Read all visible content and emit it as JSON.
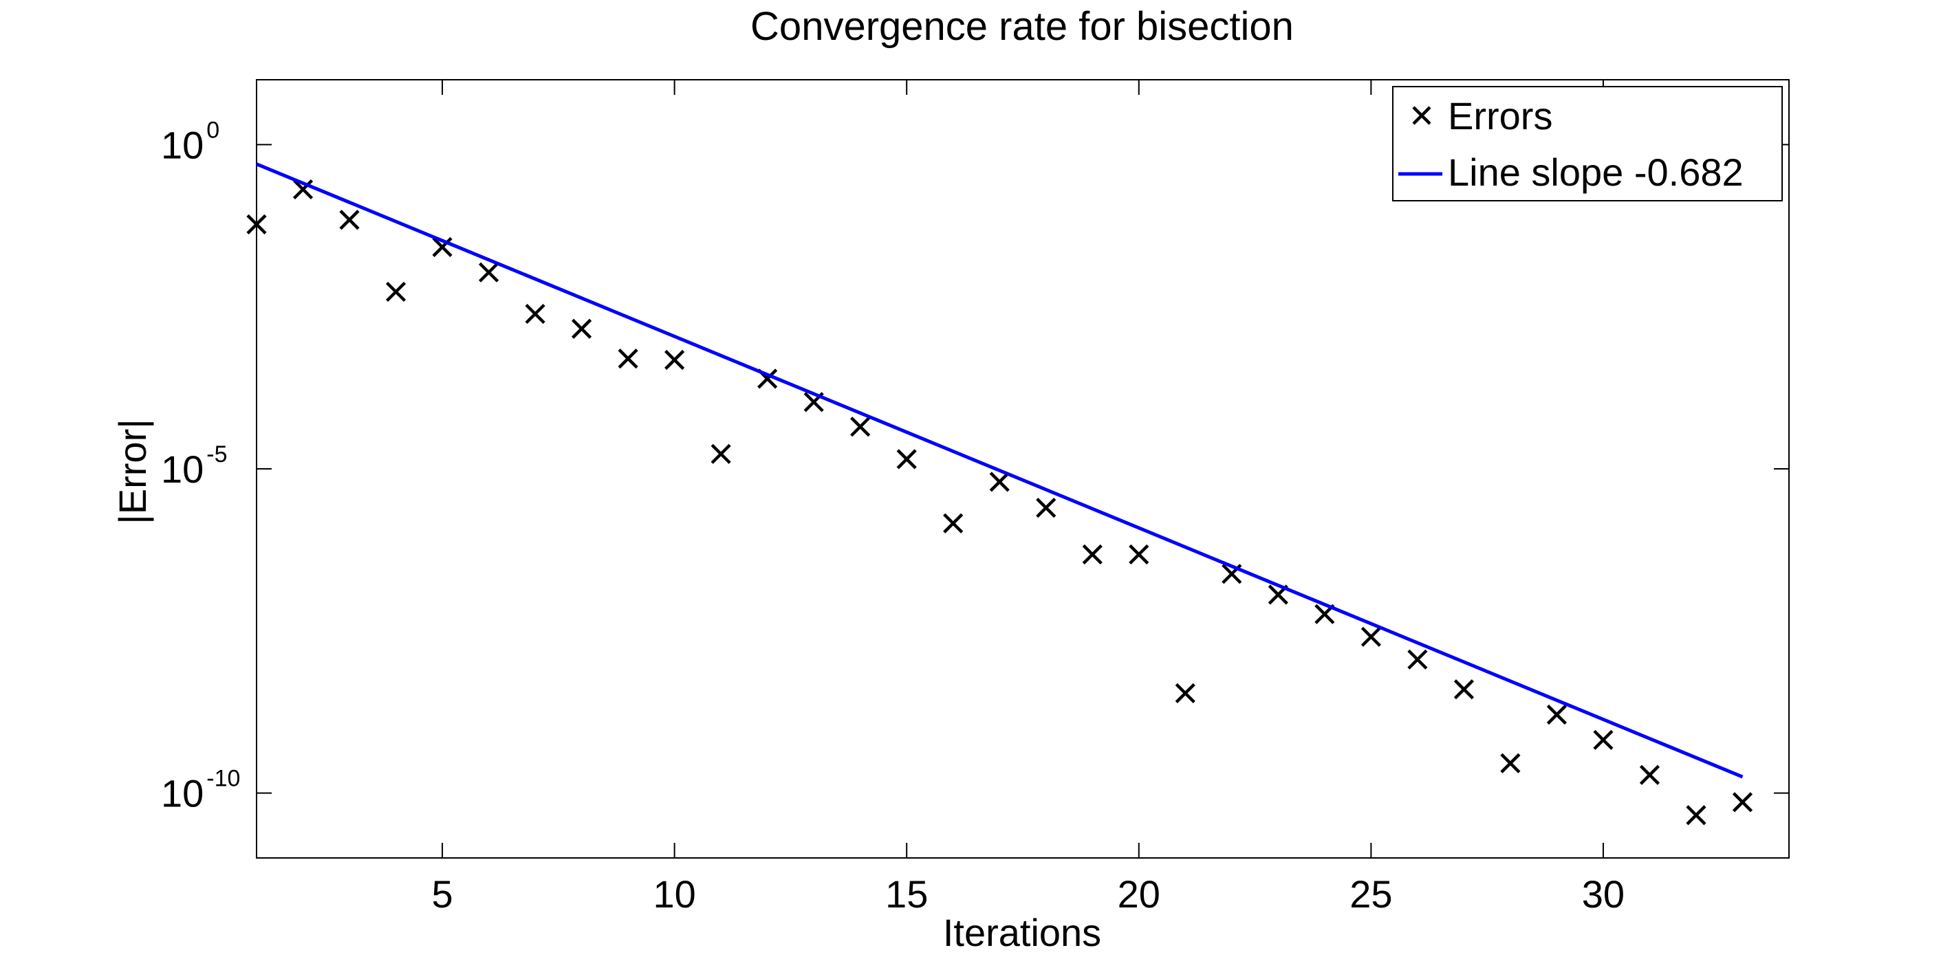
{
  "chart_data": {
    "type": "scatter",
    "title": "Convergence rate for bisection",
    "xlabel": "Iterations",
    "ylabel": "|Error|",
    "x_scale": "linear",
    "y_scale": "log",
    "xlim": [
      1,
      34
    ],
    "ylim_log10": [
      -11,
      1
    ],
    "x_ticks": [
      5,
      10,
      15,
      20,
      25,
      30
    ],
    "x_tick_labels": [
      "5",
      "10",
      "15",
      "20",
      "25",
      "30"
    ],
    "y_ticks_log10": [
      0,
      -5,
      -10
    ],
    "y_tick_labels": [
      {
        "base": "10",
        "exp": "0"
      },
      {
        "base": "10",
        "exp": "-5"
      },
      {
        "base": "10",
        "exp": "-10"
      }
    ],
    "grid": false,
    "legend_position": "top-right",
    "series": [
      {
        "name": "Errors",
        "kind": "scatter",
        "marker": "x",
        "color": "#000000",
        "x": [
          1,
          2,
          3,
          4,
          5,
          6,
          7,
          8,
          9,
          10,
          11,
          12,
          13,
          14,
          15,
          16,
          17,
          18,
          19,
          20,
          21,
          22,
          23,
          24,
          25,
          26,
          27,
          28,
          29,
          30,
          31,
          32,
          33
        ],
        "y_log10": [
          -1.23,
          -0.69,
          -1.16,
          -2.27,
          -1.58,
          -1.97,
          -2.61,
          -2.84,
          -3.3,
          -3.32,
          -4.77,
          -3.61,
          -3.97,
          -4.35,
          -4.85,
          -5.84,
          -5.2,
          -5.6,
          -6.32,
          -6.32,
          -8.46,
          -6.62,
          -6.94,
          -7.24,
          -7.59,
          -7.94,
          -8.4,
          -9.54,
          -8.79,
          -9.18,
          -9.72,
          -10.34,
          -10.14
        ]
      },
      {
        "name": "Line slope -0.682",
        "kind": "line",
        "color": "#0000ff",
        "x": [
          1,
          33
        ],
        "y_log10": [
          -0.3,
          -9.75
        ]
      }
    ]
  }
}
